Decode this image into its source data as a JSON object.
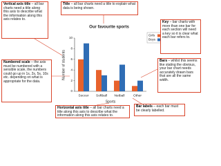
{
  "chart_data": {
    "type": "bar",
    "title": "Our favourite sports",
    "x_label": "Sports",
    "y_label": "Number of students",
    "categories": [
      "Soccer",
      "Softball",
      "Netball",
      "Other"
    ],
    "series": [
      {
        "name": "Girls",
        "color": "#e8622c",
        "values": [
          6,
          4,
          2,
          1
        ]
      },
      {
        "name": "Boys",
        "color": "#2f6db5",
        "values": [
          9,
          3,
          5,
          2
        ]
      }
    ],
    "ylim": [
      0,
      10
    ],
    "yticks": [
      0,
      2,
      4,
      6,
      8,
      10
    ],
    "grid": false,
    "legend": "top-right"
  },
  "annotations": [
    {
      "heading": "Title",
      "text": "– all bar charts need a title to explain what data is being shown."
    },
    {
      "heading": "Vertical axis title",
      "text": "– all bar charts need a title along this axis to describe what the information along this axis relates to."
    },
    {
      "heading": "Numbered scale",
      "text": "– the axis must be numbered with a sensible scale, the numbers could go up in 1s, 2s, 5s, 10s etc. depending on what is appropriate for the data."
    },
    {
      "heading": "Horizontal axis title",
      "text": "– all bar charts need a title along this axis to describe what the information along this axis relates to."
    },
    {
      "heading": "Bar labels",
      "text": "– each bar must be clearly labelled."
    },
    {
      "heading": "Key",
      "text": "– bar charts with more than one bar for each section will need a key so it is clear what each bar refers to."
    },
    {
      "heading": "Bars",
      "text": "– whilst this seems like stating the obvious, your bar chart needs accurately drawn bars that are all the same width."
    }
  ]
}
